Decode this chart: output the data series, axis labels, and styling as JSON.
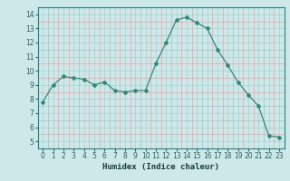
{
  "x": [
    0,
    1,
    2,
    3,
    4,
    5,
    6,
    7,
    8,
    9,
    10,
    11,
    12,
    13,
    14,
    15,
    16,
    17,
    18,
    19,
    20,
    21,
    22,
    23
  ],
  "y": [
    7.8,
    9.0,
    9.6,
    9.5,
    9.4,
    9.0,
    9.2,
    8.6,
    8.5,
    8.6,
    8.6,
    10.5,
    12.0,
    13.6,
    13.8,
    13.4,
    13.0,
    11.5,
    10.4,
    9.2,
    8.3,
    7.5,
    5.4,
    5.3
  ],
  "line_color": "#2e8b7a",
  "marker": "D",
  "marker_size": 2.0,
  "bg_color": "#cce8e8",
  "grid_major_color": "#aacfcf",
  "grid_minor_color": "#d4a0a0",
  "xlabel": "Humidex (Indice chaleur)",
  "xlim": [
    -0.5,
    23.5
  ],
  "ylim": [
    4.5,
    14.5
  ],
  "yticks": [
    5,
    6,
    7,
    8,
    9,
    10,
    11,
    12,
    13,
    14
  ],
  "xticks": [
    0,
    1,
    2,
    3,
    4,
    5,
    6,
    7,
    8,
    9,
    10,
    11,
    12,
    13,
    14,
    15,
    16,
    17,
    18,
    19,
    20,
    21,
    22,
    23
  ],
  "tick_fontsize": 5.5,
  "xlabel_fontsize": 6.5,
  "line_width": 0.9
}
